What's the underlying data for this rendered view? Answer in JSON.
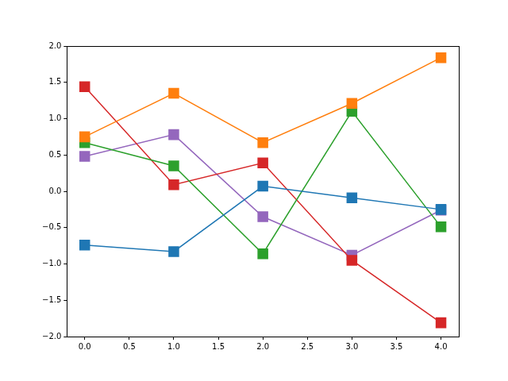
{
  "chart_data": {
    "type": "line",
    "marker": "square",
    "grid": false,
    "xlim": [
      -0.2,
      4.2
    ],
    "xticks": [
      {
        "value": 0,
        "label": "0.0"
      },
      0.5,
      {
        "value": 1,
        "label": "1.0"
      },
      1.5,
      {
        "value": 2,
        "label": "2.0"
      },
      2.5,
      {
        "value": 3,
        "label": "3.0"
      },
      3.5,
      {
        "value": 4,
        "label": "4.0"
      }
    ],
    "ylim": [
      -2,
      2
    ],
    "yticks": [
      {
        "value": -2,
        "label": "−2.0"
      },
      {
        "value": -1.5,
        "label": "−1.5"
      },
      {
        "value": -1,
        "label": "−1.0"
      },
      {
        "value": -0.5,
        "label": "−0.5"
      },
      {
        "value": 0,
        "label": "0.0"
      },
      0.5,
      {
        "value": 1,
        "label": "1.0"
      },
      1.5,
      {
        "value": 2,
        "label": "2.0"
      }
    ],
    "x": [
      0,
      1,
      2,
      3,
      4
    ],
    "series": [
      {
        "color": "#1f77b4",
        "values": [
          -0.74,
          -0.83,
          0.07,
          -0.09,
          -0.25
        ]
      },
      {
        "color": "#ff7f0e",
        "values": [
          0.75,
          1.35,
          0.67,
          1.21,
          1.84
        ]
      },
      {
        "color": "#2ca02c",
        "values": [
          0.67,
          0.35,
          -0.86,
          1.1,
          -0.49
        ]
      },
      {
        "color": "#d62728",
        "values": [
          1.44,
          0.09,
          0.39,
          -0.95,
          -1.81
        ]
      },
      {
        "color": "#9467bd",
        "values": [
          0.48,
          0.78,
          -0.35,
          -0.88,
          -0.26
        ]
      }
    ]
  }
}
